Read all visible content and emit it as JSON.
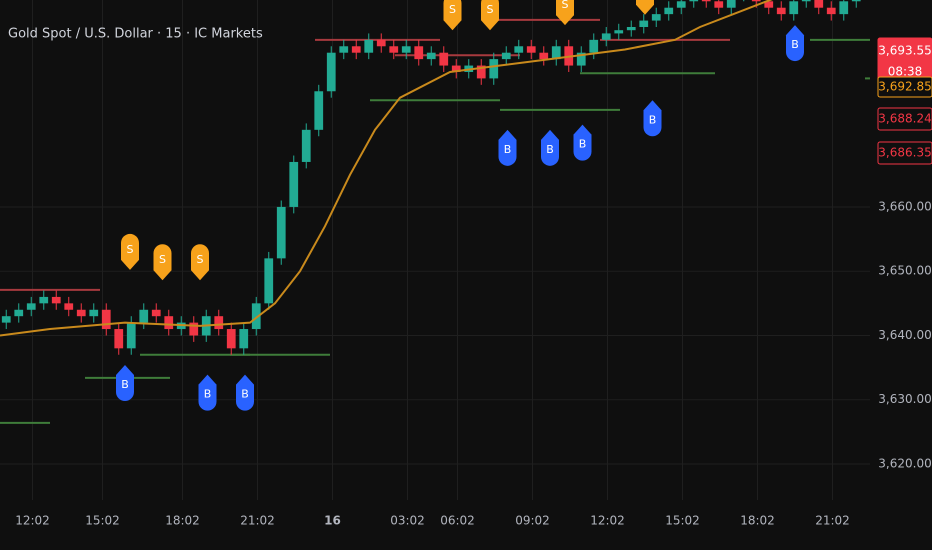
{
  "chart_data": {
    "type": "candlestick",
    "title": "Gold Spot / U.S. Dollar · 15 · IC Markets",
    "xlim": [
      0,
      34.8
    ],
    "ylim": [
      3614.4,
      3692.2
    ],
    "up_color": "#22ab94",
    "down_color": "#f23645",
    "grid": true,
    "xticks": [
      {
        "value": 1.3,
        "label": "12:02"
      },
      {
        "value": 4.1,
        "label": "15:02"
      },
      {
        "value": 7.3,
        "label": "18:02"
      },
      {
        "value": 10.3,
        "label": "21:02"
      },
      {
        "value": 13.3,
        "label": "16",
        "bold": true
      },
      {
        "value": 16.3,
        "label": "03:02"
      },
      {
        "value": 18.3,
        "label": "06:02"
      },
      {
        "value": 21.3,
        "label": "09:02"
      },
      {
        "value": 24.3,
        "label": "12:02"
      },
      {
        "value": 27.3,
        "label": "15:02"
      },
      {
        "value": 30.3,
        "label": "18:02"
      },
      {
        "value": 33.3,
        "label": "21:02"
      }
    ],
    "yticks": [
      {
        "value": 3620,
        "label": "3,620.00"
      },
      {
        "value": 3630,
        "label": "3,630.00"
      },
      {
        "value": 3640,
        "label": "3,640.00"
      },
      {
        "value": 3650,
        "label": "3,650.00"
      },
      {
        "value": 3660,
        "label": "3,660.00"
      }
    ],
    "x": [
      0.25,
      0.75,
      1.25,
      1.75,
      2.25,
      2.75,
      3.25,
      3.75,
      4.25,
      4.75,
      5.25,
      5.75,
      6.25,
      6.75,
      7.25,
      7.75,
      8.25,
      8.75,
      9.25,
      9.75,
      10.25,
      10.75,
      11.25,
      11.75,
      12.25,
      12.75,
      13.25,
      13.75,
      14.25,
      14.75,
      15.25,
      15.75,
      16.25,
      16.75,
      17.25,
      17.75,
      18.25,
      18.75,
      19.25,
      19.75,
      20.25,
      20.75,
      21.25,
      21.75,
      22.25,
      22.75,
      23.25,
      23.75,
      24.25,
      24.75,
      25.25,
      25.75,
      26.25,
      26.75,
      27.25,
      27.75,
      28.25,
      28.75,
      29.25,
      29.75,
      30.25,
      30.75,
      31.25,
      31.75,
      32.25,
      32.75,
      33.25,
      33.75,
      34.25,
      34.75
    ],
    "open": [
      3642,
      3643,
      3644,
      3645,
      3646,
      3645,
      3644,
      3643,
      3644,
      3641,
      3638,
      3642,
      3644,
      3643,
      3641,
      3642,
      3640,
      3643,
      3641,
      3638,
      3641,
      3645,
      3652,
      3660,
      3667,
      3672,
      3678,
      3684,
      3685,
      3684,
      3686,
      3685,
      3684,
      3685,
      3683,
      3684,
      3682,
      3681,
      3682,
      3680,
      3683,
      3684,
      3685,
      3684,
      3683,
      3685,
      3682,
      3684,
      3686,
      3687,
      3687.5,
      3688,
      3689,
      3690,
      3691,
      3692,
      3693,
      3692,
      3691,
      3693,
      3694,
      3692,
      3691,
      3690,
      3692,
      3693,
      3691,
      3690,
      3692,
      3694
    ],
    "high": [
      3644,
      3645,
      3646,
      3647,
      3647,
      3646,
      3645,
      3645,
      3645,
      3642,
      3643,
      3645,
      3645,
      3644,
      3643,
      3643,
      3644,
      3644,
      3642,
      3642,
      3646,
      3653,
      3661,
      3668,
      3673,
      3679,
      3685,
      3686,
      3686,
      3687,
      3687,
      3686,
      3686,
      3686,
      3685,
      3685,
      3683,
      3683,
      3683,
      3684,
      3685,
      3686,
      3686,
      3685,
      3686,
      3686,
      3685,
      3687,
      3688,
      3688.5,
      3689,
      3690,
      3691,
      3692,
      3693,
      3694,
      3694,
      3693,
      3694,
      3695,
      3695,
      3693,
      3692,
      3693,
      3694,
      3694,
      3692,
      3693,
      3695,
      3695
    ],
    "low": [
      3641,
      3642,
      3643,
      3644,
      3644,
      3643,
      3642,
      3642,
      3640,
      3637,
      3637,
      3641,
      3642,
      3640,
      3640,
      3639,
      3639,
      3640,
      3637,
      3637,
      3640,
      3644,
      3651,
      3659,
      3666,
      3671,
      3677,
      3683,
      3683,
      3683,
      3684,
      3683,
      3683,
      3682,
      3682,
      3681,
      3680,
      3680,
      3679,
      3679,
      3682,
      3683,
      3683,
      3682,
      3682,
      3681,
      3681,
      3683,
      3685,
      3686,
      3686.5,
      3687,
      3688,
      3689,
      3690,
      3691,
      3691,
      3690,
      3690,
      3692,
      3691,
      3690,
      3689,
      3689,
      3691,
      3690,
      3689,
      3689,
      3691,
      3692.55
    ],
    "close": [
      3643,
      3644,
      3645,
      3646,
      3645,
      3644,
      3643,
      3644,
      3641,
      3638,
      3642,
      3644,
      3643,
      3641,
      3642,
      3640,
      3643,
      3641,
      3638,
      3641,
      3645,
      3652,
      3660,
      3667,
      3672,
      3678,
      3684,
      3685,
      3684,
      3686,
      3685,
      3684,
      3685,
      3683,
      3684,
      3682,
      3681,
      3682,
      3680,
      3683,
      3684,
      3685,
      3684,
      3683,
      3685,
      3682,
      3684,
      3686,
      3687,
      3687.5,
      3688,
      3689,
      3690,
      3691,
      3692,
      3693,
      3692,
      3691,
      3693,
      3694,
      3692,
      3691,
      3690,
      3692,
      3693,
      3691,
      3690,
      3692,
      3694,
      3693.55
    ],
    "ma": {
      "color": "#c98a1c",
      "x": [
        0,
        2,
        5,
        8,
        10,
        11,
        12,
        13,
        14,
        15,
        16,
        18,
        20,
        22,
        25,
        27,
        28,
        30,
        32
      ],
      "values": [
        3640,
        3641,
        3642,
        3641.5,
        3642,
        3645,
        3650,
        3657,
        3665,
        3672,
        3677,
        3681,
        3682,
        3683,
        3684.5,
        3686,
        3688,
        3691,
        3694
      ]
    },
    "levels": [
      {
        "x": [
          0,
          4
        ],
        "price": 3647.1,
        "color": "#a83a3f"
      },
      {
        "x": [
          12.6,
          17.6
        ],
        "price": 3686.0,
        "color": "#a83a3f"
      },
      {
        "x": [
          15.8,
          20.8
        ],
        "price": 3683.6,
        "color": "#a83a3f"
      },
      {
        "x": [
          19.8,
          24
        ],
        "price": 3689.1,
        "color": "#a83a3f"
      },
      {
        "x": [
          24,
          29.2
        ],
        "price": 3686.0,
        "color": "#a83a3f"
      },
      {
        "x": [
          3.4,
          6.8
        ],
        "price": 3633.4,
        "color": "#3f7d3a"
      },
      {
        "x": [
          5.6,
          10
        ],
        "price": 3637.0,
        "color": "#3f7d3a"
      },
      {
        "x": [
          9.2,
          13.2
        ],
        "price": 3637.0,
        "color": "#3f7d3a"
      },
      {
        "x": [
          0,
          2
        ],
        "price": 3626.4,
        "color": "#3f7d3a"
      },
      {
        "x": [
          14.8,
          20
        ],
        "price": 3676.6,
        "color": "#3f7d3a"
      },
      {
        "x": [
          20,
          24.8
        ],
        "price": 3675.1,
        "color": "#3f7d3a"
      },
      {
        "x": [
          23.2,
          28.6
        ],
        "price": 3680.8,
        "color": "#3f7d3a"
      },
      {
        "x": [
          32.4,
          34.8
        ],
        "price": 3686.0,
        "color": "#3f7d3a"
      },
      {
        "x": [
          34.6,
          34.8
        ],
        "price": 3680.0,
        "color": "#3f7d3a"
      }
    ],
    "signals": [
      {
        "label": "S",
        "x": 5.2,
        "price": 3650.2,
        "color": "#f7a21b"
      },
      {
        "label": "S",
        "x": 6.5,
        "price": 3648.6,
        "color": "#f7a21b"
      },
      {
        "label": "S",
        "x": 8.0,
        "price": 3648.6,
        "color": "#f7a21b"
      },
      {
        "label": "S",
        "x": 18.1,
        "price": 3687.5,
        "color": "#f7a21b"
      },
      {
        "label": "S",
        "x": 19.6,
        "price": 3687.5,
        "color": "#f7a21b"
      },
      {
        "label": "S",
        "x": 22.6,
        "price": 3688.3,
        "color": "#f7a21b"
      },
      {
        "label": "S",
        "x": 25.8,
        "price": 3689.9,
        "color": "#f7a21b"
      },
      {
        "label": "B",
        "x": 5.0,
        "price": 3635.4,
        "color": "#2962ff"
      },
      {
        "label": "B",
        "x": 8.3,
        "price": 3633.9,
        "color": "#2962ff"
      },
      {
        "label": "B",
        "x": 9.8,
        "price": 3633.9,
        "color": "#2962ff"
      },
      {
        "label": "B",
        "x": 20.3,
        "price": 3672.0,
        "color": "#2962ff"
      },
      {
        "label": "B",
        "x": 22.0,
        "price": 3672.0,
        "color": "#2962ff"
      },
      {
        "label": "B",
        "x": 23.3,
        "price": 3672.8,
        "color": "#2962ff"
      },
      {
        "label": "B",
        "x": 26.1,
        "price": 3676.6,
        "color": "#2962ff"
      },
      {
        "label": "B",
        "x": 31.8,
        "price": 3688.3,
        "color": "#2962ff"
      }
    ],
    "price_tags": [
      {
        "label": "3,693.55",
        "time": "08:38",
        "fill": "#f23645",
        "text": "#ffffff",
        "border": "#f23645"
      },
      {
        "label": "3,692.85",
        "fill": "#0f0f0f",
        "text": "#f7a21b",
        "border": "#f7a21b"
      },
      {
        "label": "3,688.24",
        "fill": "#0f0f0f",
        "text": "#f23645",
        "border": "#f23645"
      },
      {
        "label": "3,686.35",
        "fill": "#0f0f0f",
        "text": "#f23645",
        "border": "#f23645"
      }
    ]
  }
}
